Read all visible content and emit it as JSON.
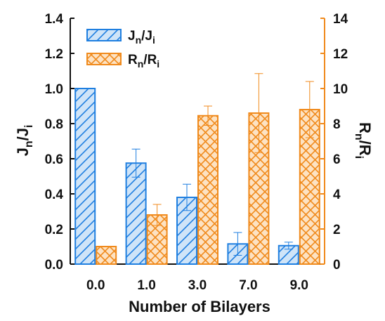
{
  "chart_data": {
    "type": "bar",
    "categories": [
      "0.0",
      "1.0",
      "3.0",
      "7.0",
      "9.0"
    ],
    "series": [
      {
        "name": "Jn/Ji",
        "axis": "left",
        "values": [
          1.0,
          0.575,
          0.38,
          0.115,
          0.105
        ],
        "errors": [
          0.0,
          0.08,
          0.075,
          0.065,
          0.02
        ],
        "color": "#1f7fe0",
        "fill": "#cfe4f8",
        "pattern": "diagonal-hatch"
      },
      {
        "name": "Rn/Ri",
        "axis": "right",
        "values": [
          1.0,
          2.8,
          8.45,
          8.6,
          8.8
        ],
        "errors": [
          0.0,
          0.6,
          0.55,
          2.25,
          1.6
        ],
        "color": "#f08a1c",
        "fill": "#fde2c2",
        "pattern": "cross-hatch"
      }
    ],
    "xlabel": "Number of Bilayers",
    "ylabel_left": {
      "main": "J",
      "sub1": "n",
      "mid": "/J",
      "sub2": "i"
    },
    "ylabel_right": {
      "main": "R",
      "sub1": "n",
      "mid": "/R",
      "sub2": "i"
    },
    "ylim_left": [
      0,
      1.4
    ],
    "ylim_right": [
      0,
      14
    ],
    "yticks_left": [
      "0.0",
      "0.2",
      "0.4",
      "0.6",
      "0.8",
      "1.0",
      "1.2",
      "1.4"
    ],
    "yticks_right": [
      "0",
      "2",
      "4",
      "6",
      "8",
      "10",
      "12",
      "14"
    ],
    "legend": [
      {
        "main": "J",
        "sub1": "n",
        "mid": "/J",
        "sub2": "i"
      },
      {
        "main": "R",
        "sub1": "n",
        "mid": "/R",
        "sub2": "i"
      }
    ],
    "legend_position": "top-left",
    "grid": false
  }
}
